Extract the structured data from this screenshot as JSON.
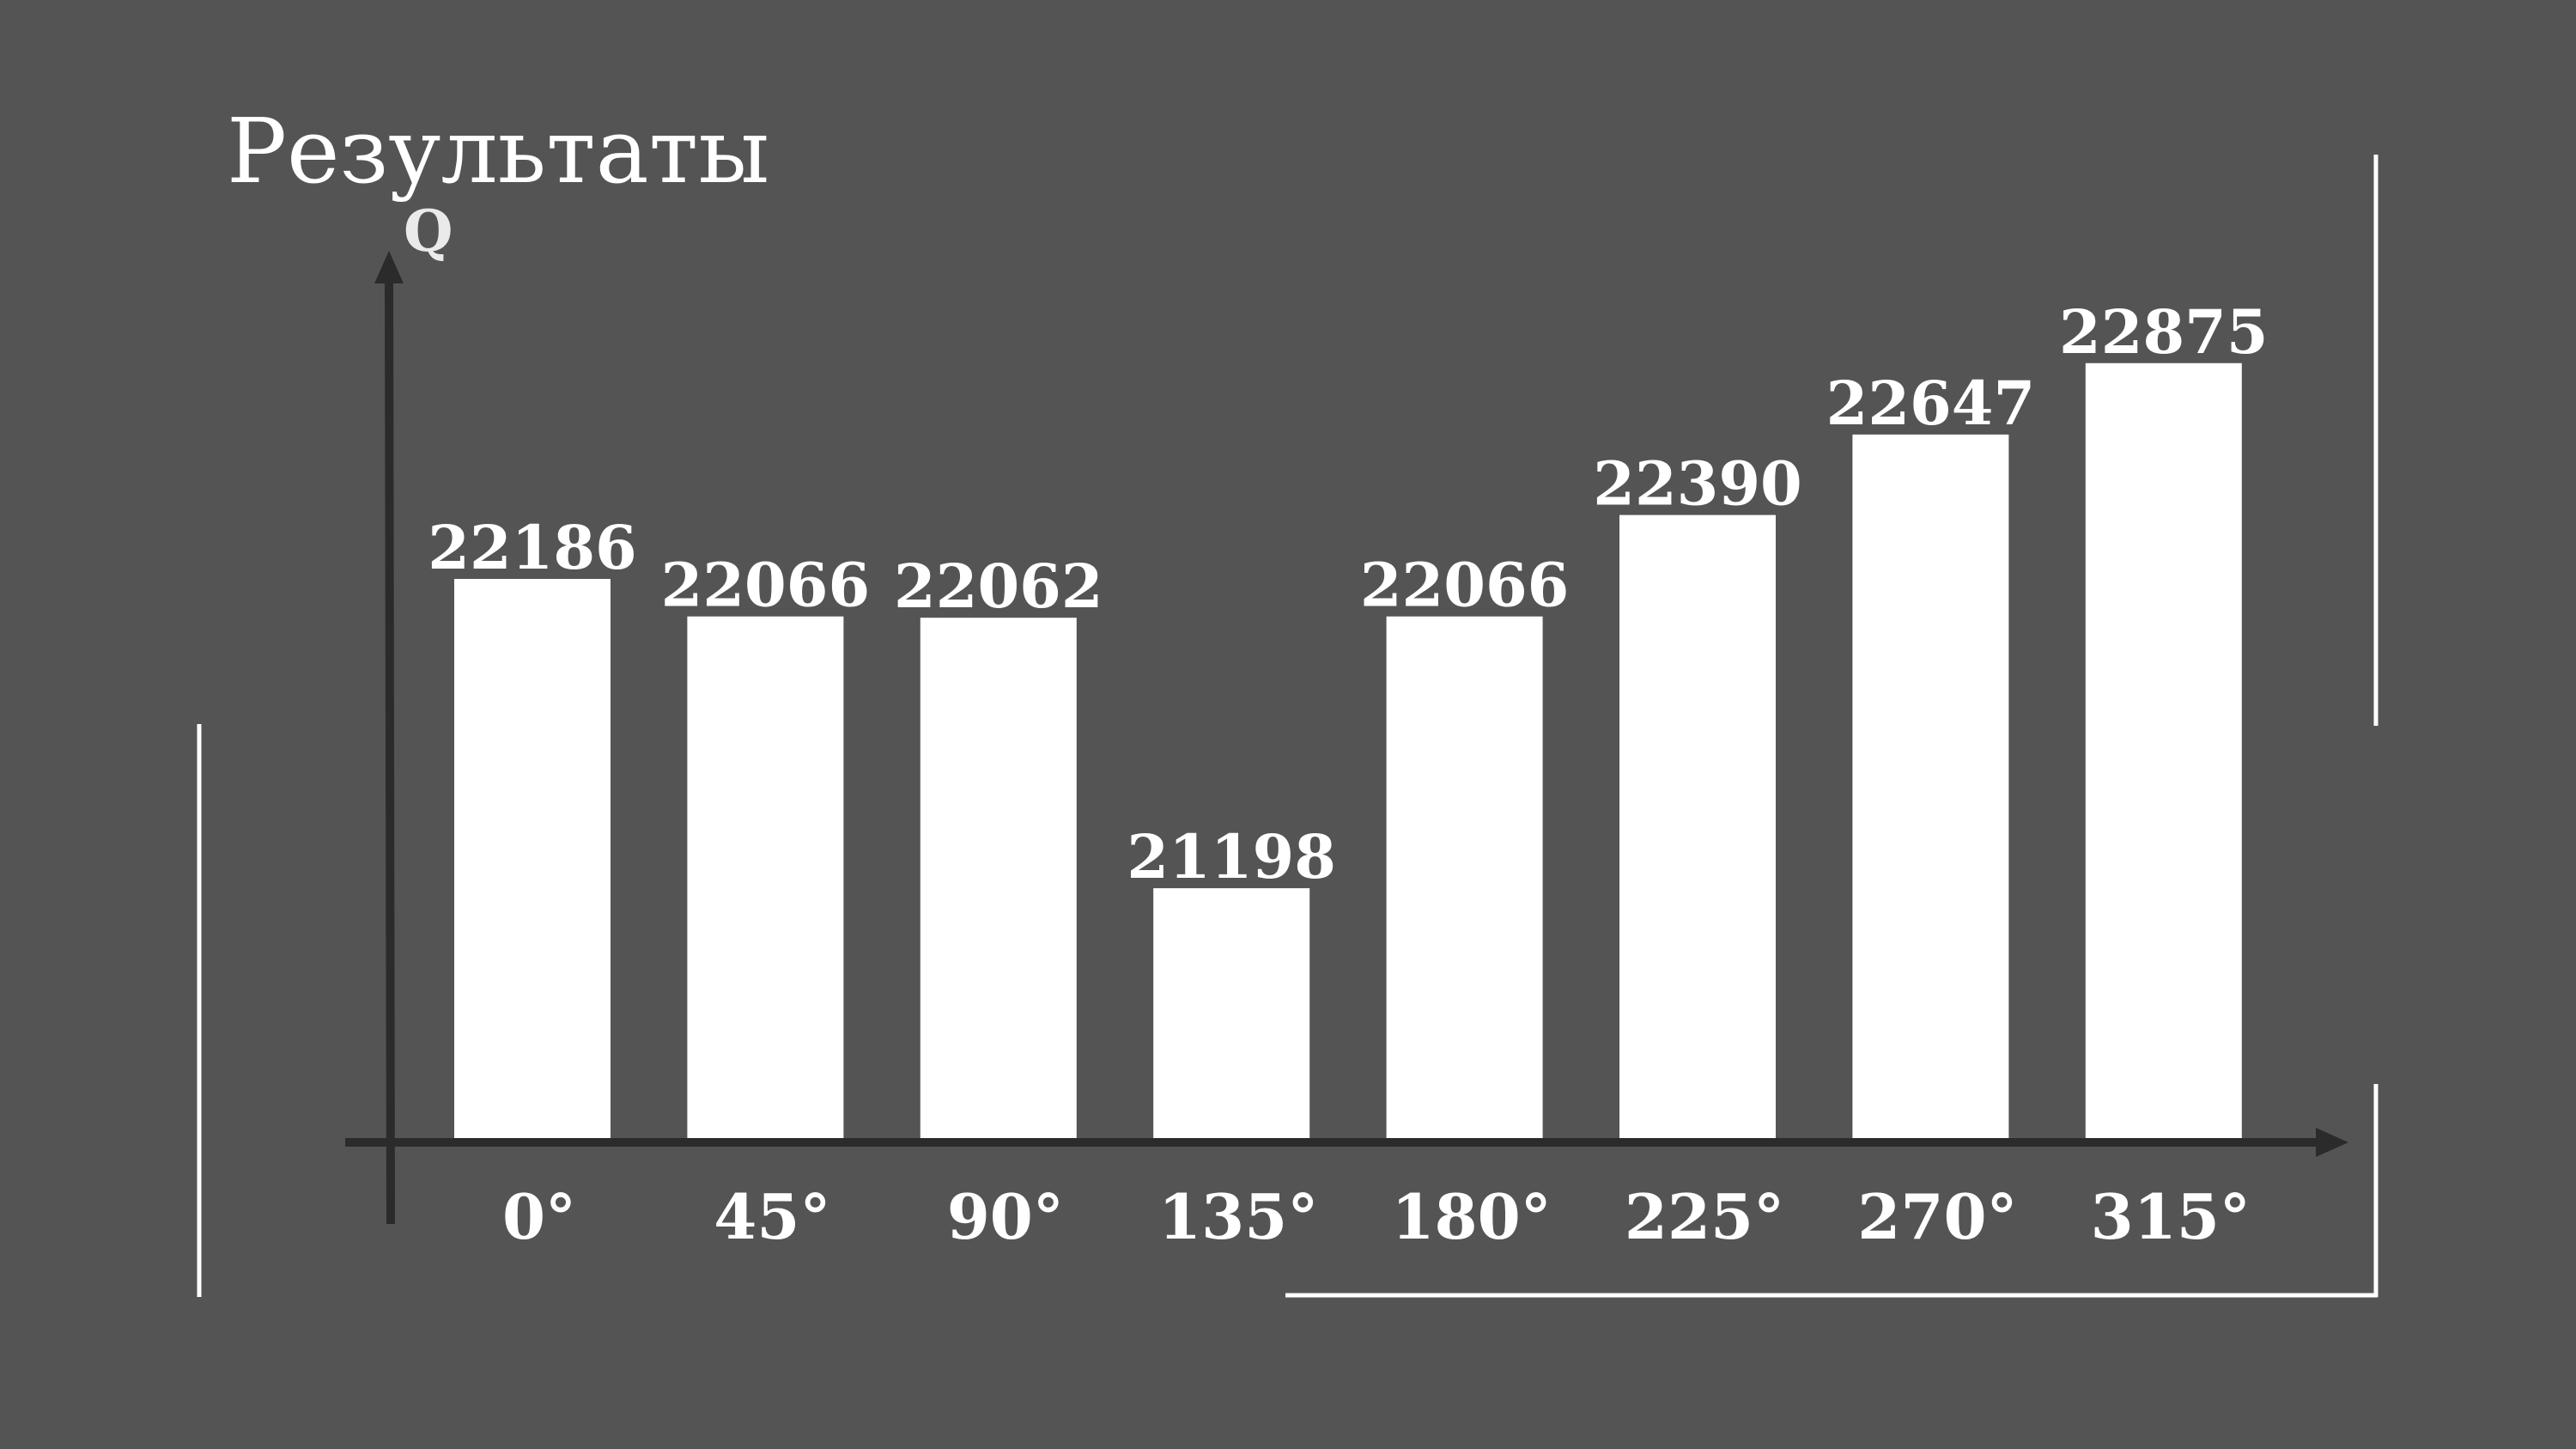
{
  "chart_data": {
    "type": "bar",
    "title": "Результаты",
    "ylabel": "Q",
    "xlabel": "",
    "categories": [
      "0°",
      "45°",
      "90°",
      "135°",
      "180°",
      "225°",
      "270°",
      "315°"
    ],
    "values": [
      22186,
      22066,
      22062,
      21198,
      22066,
      22390,
      22647,
      22875
    ],
    "value_labels": [
      "22186",
      "22066",
      "22062",
      "21198",
      "22066",
      "22390",
      "22647",
      "22875"
    ],
    "ylim": [
      20400,
      23500
    ],
    "grid": false,
    "legend": "none"
  },
  "colors": {
    "background": "#545454",
    "bar": "#ffffff",
    "axis": "#2b2b2b",
    "text": "#ffffff",
    "frame": "#ffffff"
  }
}
